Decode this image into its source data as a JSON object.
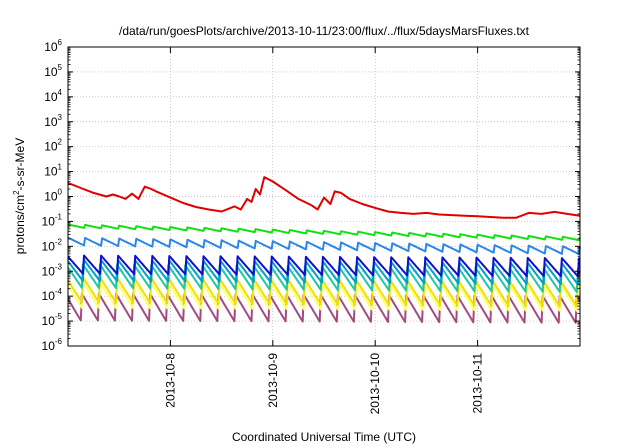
{
  "chart_data": {
    "type": "line",
    "title": "/data/run/goesPlots/archive/2013-10-11/23:00/flux/../flux/5daysMarsFluxes.txt",
    "xlabel": "Coordinated Universal Time (UTC)",
    "ylabel": {
      "base": "protons/cm",
      "sup": "2",
      "rest": "-s-sr-MeV"
    },
    "yscale": "log",
    "ylim": [
      1e-06,
      1000000.0
    ],
    "y_ticks": [
      {
        "exp": "-6",
        "value": 1e-06
      },
      {
        "exp": "-5",
        "value": 1e-05
      },
      {
        "exp": "-4",
        "value": 0.0001
      },
      {
        "exp": "-3",
        "value": 0.001
      },
      {
        "exp": "-2",
        "value": 0.01
      },
      {
        "exp": "-1",
        "value": 0.1
      },
      {
        "exp": "0",
        "value": 1
      },
      {
        "exp": "1",
        "value": 10
      },
      {
        "exp": "2",
        "value": 100
      },
      {
        "exp": "3",
        "value": 1000
      },
      {
        "exp": "4",
        "value": 10000
      },
      {
        "exp": "5",
        "value": 100000
      },
      {
        "exp": "6",
        "value": 1000000
      }
    ],
    "xlim": [
      "2013-10-07T00:00",
      "2013-10-12T00:00"
    ],
    "x_ticks": [
      "2013-10-8",
      "2013-10-9",
      "2013-10-10",
      "2013-10-11"
    ],
    "x_tick_dates": [
      "2013-10-08T00:00",
      "2013-10-09T00:00",
      "2013-10-10T00:00",
      "2013-10-11T00:00"
    ],
    "grid": true,
    "legend": "none",
    "series": [
      {
        "color": "#e00000",
        "style": "trend",
        "x": [
          "2013-10-07T00:00",
          "2013-10-07T03:00",
          "2013-10-07T06:00",
          "2013-10-07T09:00",
          "2013-10-07T10:30",
          "2013-10-07T12:00",
          "2013-10-07T13:30",
          "2013-10-07T15:00",
          "2013-10-07T16:30",
          "2013-10-07T18:00",
          "2013-10-07T19:30",
          "2013-10-07T21:00",
          "2013-10-08T00:00",
          "2013-10-08T03:00",
          "2013-10-08T06:00",
          "2013-10-08T09:00",
          "2013-10-08T12:00",
          "2013-10-08T15:00",
          "2013-10-08T16:30",
          "2013-10-08T18:00",
          "2013-10-08T19:00",
          "2013-10-08T20:00",
          "2013-10-08T21:00",
          "2013-10-08T22:00",
          "2013-10-09T00:00",
          "2013-10-09T03:00",
          "2013-10-09T06:00",
          "2013-10-09T09:00",
          "2013-10-09T10:30",
          "2013-10-09T12:00",
          "2013-10-09T13:30",
          "2013-10-09T14:30",
          "2013-10-09T16:00",
          "2013-10-09T18:00",
          "2013-10-09T21:00",
          "2013-10-10T00:00",
          "2013-10-10T03:00",
          "2013-10-10T06:00",
          "2013-10-10T09:00",
          "2013-10-10T12:00",
          "2013-10-10T15:00",
          "2013-10-10T18:00",
          "2013-10-10T21:00",
          "2013-10-11T00:00",
          "2013-10-11T03:00",
          "2013-10-11T06:00",
          "2013-10-11T09:00",
          "2013-10-11T12:00",
          "2013-10-11T15:00",
          "2013-10-11T18:00",
          "2013-10-11T21:00",
          "2013-10-12T00:00"
        ],
        "y": [
          3.5,
          2.2,
          1.4,
          1.0,
          1.2,
          1.0,
          0.8,
          1.3,
          0.8,
          2.5,
          2.0,
          1.5,
          0.9,
          0.55,
          0.38,
          0.3,
          0.25,
          0.4,
          0.3,
          0.8,
          0.6,
          2.0,
          1.2,
          6.0,
          4.0,
          1.8,
          0.8,
          0.45,
          0.3,
          0.9,
          0.5,
          1.6,
          1.4,
          0.8,
          0.5,
          0.35,
          0.25,
          0.22,
          0.2,
          0.22,
          0.19,
          0.18,
          0.17,
          0.16,
          0.15,
          0.14,
          0.14,
          0.22,
          0.2,
          0.24,
          0.2,
          0.17
        ]
      },
      {
        "color": "#10e010",
        "style": "sawtooth",
        "base": 0.065,
        "end": 0.02,
        "amp": 1.35,
        "period_hours": 4,
        "phase_hours": 0
      },
      {
        "color": "#2a86e8",
        "style": "sawtooth",
        "base": 0.016,
        "end": 0.007,
        "amp": 2.1,
        "period_hours": 4,
        "phase_hours": 0.2
      },
      {
        "color": "#1010cc",
        "style": "sawtooth",
        "base": 0.0018,
        "end": 0.0014,
        "amp": 6.0,
        "period_hours": 4,
        "phase_hours": 0.3
      },
      {
        "color": "#00a0c8",
        "style": "sawtooth",
        "base": 0.0011,
        "end": 0.0008,
        "amp": 8.0,
        "period_hours": 4,
        "phase_hours": 0.4
      },
      {
        "color": "#20c8a0",
        "style": "sawtooth",
        "base": 0.0006,
        "end": 0.0004,
        "amp": 10.0,
        "period_hours": 4,
        "phase_hours": 0.5
      },
      {
        "color": "#f0e000",
        "style": "sawtooth",
        "base": 0.00018,
        "end": 0.00012,
        "amp": 12.0,
        "period_hours": 4,
        "phase_hours": 0.6
      },
      {
        "color": "#ffff70",
        "style": "sawtooth",
        "base": 0.00012,
        "end": 9e-05,
        "amp": 13.0,
        "period_hours": 4,
        "phase_hours": 0.7
      },
      {
        "color": "#a44a80",
        "style": "sawtooth",
        "base": 3.5e-05,
        "end": 2.8e-05,
        "amp": 14.0,
        "period_hours": 4,
        "phase_hours": 0.8
      }
    ]
  }
}
